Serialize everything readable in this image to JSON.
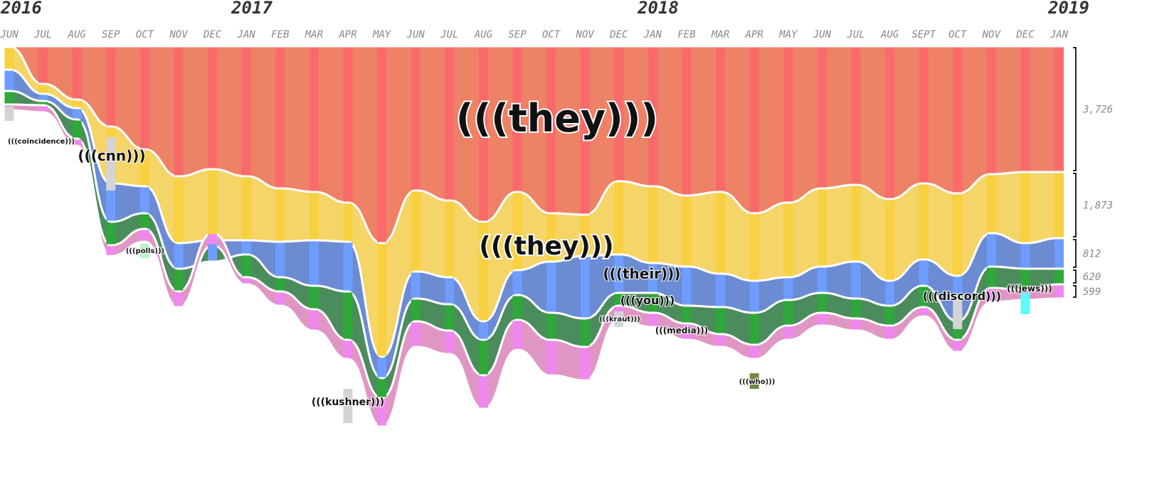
{
  "chart_data": {
    "type": "area",
    "years": [
      "2016",
      "2017",
      "2018",
      "2019"
    ],
    "months": [
      "JUN",
      "JUL",
      "AUG",
      "SEP",
      "OCT",
      "NOV",
      "DEC",
      "JAN",
      "FEB",
      "MAR",
      "APR",
      "MAY",
      "JUN",
      "JUL",
      "AUG",
      "SEP",
      "OCT",
      "NOV",
      "DEC",
      "JAN",
      "FEB",
      "MAR",
      "APR",
      "MAY",
      "JUN",
      "JUL",
      "AUG",
      "SEPT",
      "OCT",
      "NOV",
      "DEC",
      "JAN"
    ],
    "colors": {
      "red": "#ee8266",
      "red_bar": "#f96b6b",
      "yellow": "#f5d468",
      "yellow_bar": "#f7d13f",
      "blue": "#6b8bd3",
      "blue_bar": "#6f9dff",
      "green": "#4b8c5c",
      "green_bar": "#2fa83a",
      "pink": "#e096c4",
      "pink_bar": "#ee88ee",
      "grey_bar": "#d4d4d4",
      "light_green_bar": "#b7f5c4",
      "olive_bar": "#6f8a45",
      "cyan_bar": "#5ffafa"
    },
    "bands": [
      {
        "name": "(((they)))",
        "color": "red",
        "total": "3,726"
      },
      {
        "name": "(((they)))",
        "color": "yellow",
        "total": "1,873"
      },
      {
        "name": "(((their)))",
        "color": "blue",
        "total": "812"
      },
      {
        "name": "(((you)))",
        "color": "green",
        "total": "620"
      },
      {
        "name": "(((media)))",
        "color": "pink",
        "total": "599"
      }
    ],
    "terms": [
      {
        "label": "(((coincidence)))",
        "month_index": 0
      },
      {
        "label": "(((cnn)))",
        "month_index": 3
      },
      {
        "label": "(((polls)))",
        "month_index": 4
      },
      {
        "label": "(((kushner)))",
        "month_index": 10
      },
      {
        "label": "(((kraut)))",
        "month_index": 18
      },
      {
        "label": "(((who)))",
        "month_index": 22
      },
      {
        "label": "(((discord)))",
        "month_index": 28
      },
      {
        "label": "(((jews)))",
        "month_index": 30
      }
    ]
  }
}
